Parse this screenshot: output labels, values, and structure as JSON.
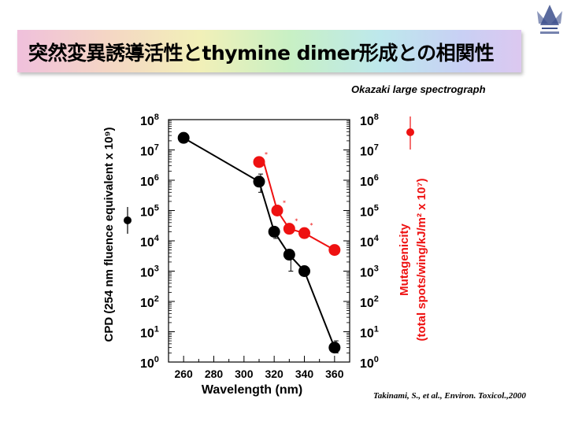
{
  "slide": {
    "title": "突然変異誘導活性とthymine dimer形成との相関性",
    "source_top": "Okazaki large spectrograph",
    "citation": "Takinami, S., et al., Environ. Toxicol.,2000",
    "logo_icon": "university-emblem-icon"
  },
  "chart_data": {
    "type": "line",
    "xlabel": "Wavelength (nm)",
    "ylabel_left": "CPD (254 nm fluence equivalent x 10⁹)",
    "ylabel_right_line1": "Mutagenicity",
    "ylabel_right_line2": "(total spots/wing/kJ/m² x 10⁷)",
    "x_ticks": [
      260,
      280,
      300,
      320,
      340,
      360
    ],
    "x_tick_labels": [
      "260",
      "280",
      "300",
      "320",
      "340",
      "360"
    ],
    "xlim": [
      250,
      370
    ],
    "y_scale": "log",
    "ylim": [
      1,
      100000000
    ],
    "y_tick_exponents": [
      0,
      1,
      2,
      3,
      4,
      5,
      6,
      7,
      8
    ],
    "grid": false,
    "series": [
      {
        "color": "#000000",
        "x": [
          260,
          310,
          320,
          330,
          340,
          360
        ],
        "y": [
          25000000,
          900000,
          20000,
          3500,
          1000,
          3
        ],
        "err_up": [
          0,
          700000,
          0,
          0,
          0,
          2
        ],
        "err_down": [
          0,
          500000,
          8000,
          2500,
          0,
          1
        ]
      },
      {
        "color": "#ee1111",
        "x": [
          310,
          313,
          322,
          330,
          340,
          360
        ],
        "y": [
          4000000,
          4000000,
          100000,
          25000,
          18000,
          5000
        ],
        "markers": [
          true,
          false,
          true,
          true,
          true,
          true
        ],
        "asterisks": [
          true,
          false,
          true,
          true,
          true,
          false
        ]
      }
    ],
    "legend_left": {
      "color": "#000000"
    },
    "legend_right": {
      "color": "#ee1111"
    }
  }
}
